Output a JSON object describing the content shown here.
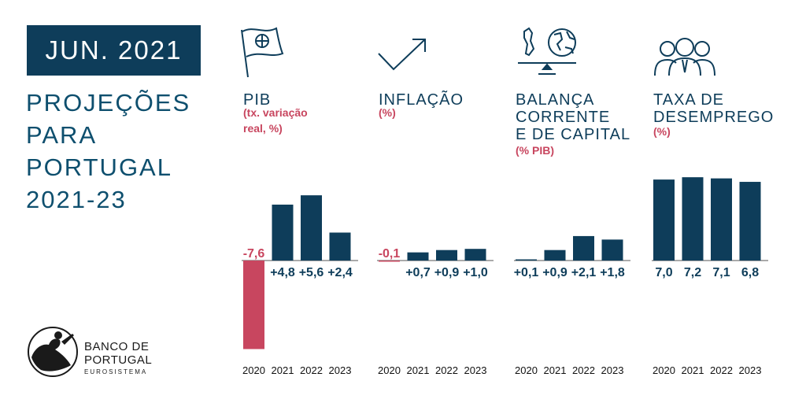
{
  "header": {
    "date": "JUN. 2021",
    "title_lines": [
      "PROJEÇÕES",
      "PARA",
      "PORTUGAL",
      "2021-23"
    ]
  },
  "logo": {
    "name_line1": "BANCO DE",
    "name_line2": "PORTUGAL",
    "sub": "EUROSISTEMA"
  },
  "colors": {
    "positive": "#0e3d5a",
    "negative": "#c8465f",
    "headline": "#0e4f6e"
  },
  "chart_data": [
    {
      "type": "bar",
      "icon": "flag-icon",
      "title_lines": [
        "PIB"
      ],
      "subtitle_lines": [
        "(tx. variação",
        "real, %)"
      ],
      "categories": [
        "2020",
        "2021",
        "2022",
        "2023"
      ],
      "values": [
        -7.6,
        4.8,
        5.6,
        2.4
      ],
      "value_labels": [
        "-7,6",
        "+4,8",
        "+5,6",
        "+2,4"
      ],
      "ylim": [
        -8,
        6
      ]
    },
    {
      "type": "bar",
      "icon": "trend-up-arrow-icon",
      "title_lines": [
        "INFLAÇÃO"
      ],
      "subtitle_lines": [
        "(%)"
      ],
      "categories": [
        "2020",
        "2021",
        "2022",
        "2023"
      ],
      "values": [
        -0.1,
        0.7,
        0.9,
        1.0
      ],
      "value_labels": [
        "-0,1",
        "+0,7",
        "+0,9",
        "+1,0"
      ],
      "ylim": [
        -8,
        6
      ]
    },
    {
      "type": "bar",
      "icon": "balance-globe-icon",
      "title_lines": [
        "BALANÇA",
        "CORRENTE",
        "E DE CAPITAL"
      ],
      "subtitle_lines": [
        "(% PIB)"
      ],
      "categories": [
        "2020",
        "2021",
        "2022",
        "2023"
      ],
      "values": [
        0.1,
        0.9,
        2.1,
        1.8
      ],
      "value_labels": [
        "+0,1",
        "+0,9",
        "+2,1",
        "+1,8"
      ],
      "ylim": [
        -8,
        6
      ]
    },
    {
      "type": "bar",
      "icon": "people-group-icon",
      "title_lines": [
        "TAXA DE",
        "DESEMPREGO"
      ],
      "subtitle_lines": [
        "(%)"
      ],
      "categories": [
        "2020",
        "2021",
        "2022",
        "2023"
      ],
      "values": [
        7.0,
        7.2,
        7.1,
        6.8
      ],
      "value_labels": [
        "7,0",
        "7,2",
        "7,1",
        "6,8"
      ],
      "ylim": [
        0,
        10
      ]
    }
  ]
}
